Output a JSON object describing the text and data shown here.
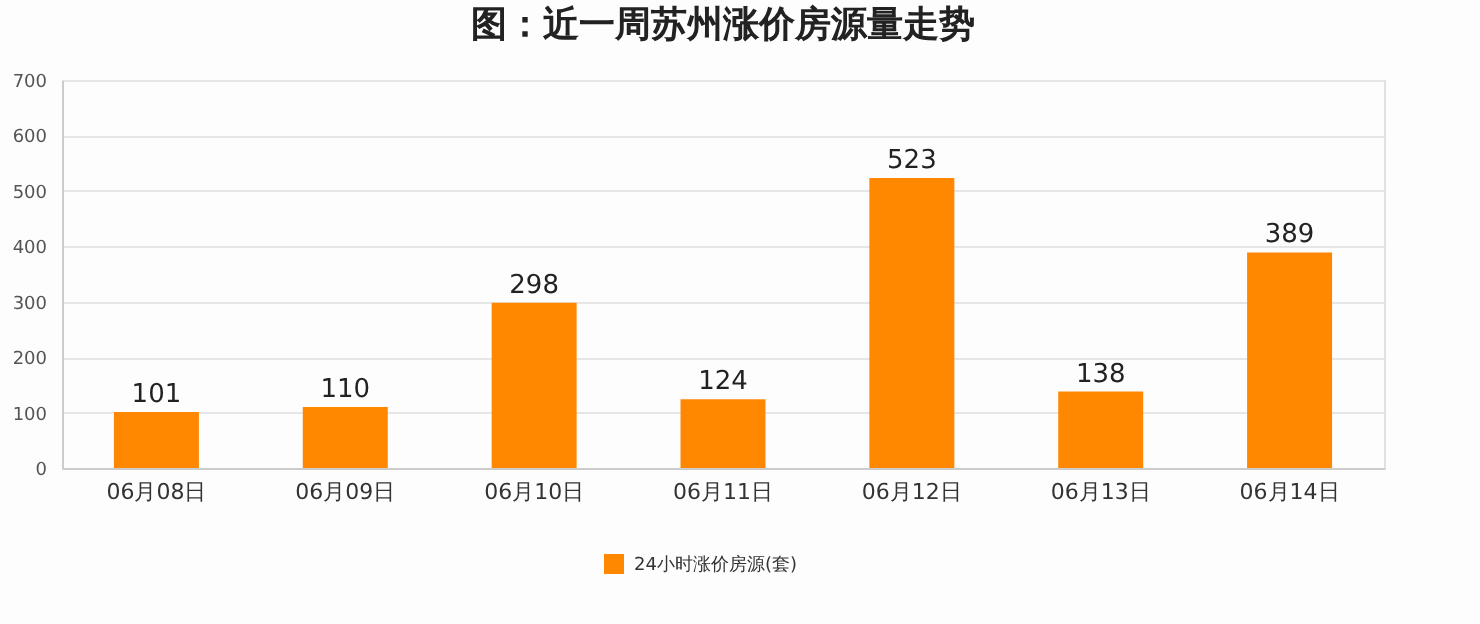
{
  "chart_data": {
    "type": "bar",
    "title": "图：近一周苏州涨价房源量走势",
    "categories": [
      "06月08日",
      "06月09日",
      "06月10日",
      "06月11日",
      "06月12日",
      "06月13日",
      "06月14日"
    ],
    "series": [
      {
        "name": "24小时涨价房源(套)",
        "color": "#ff8800",
        "values": [
          101,
          110,
          298,
          124,
          523,
          138,
          389
        ]
      }
    ],
    "ylim": [
      0,
      700
    ],
    "yticks": [
      0,
      100,
      200,
      300,
      400,
      500,
      600,
      700
    ],
    "grid": "y",
    "legend": "bottom",
    "data_labels": true
  }
}
